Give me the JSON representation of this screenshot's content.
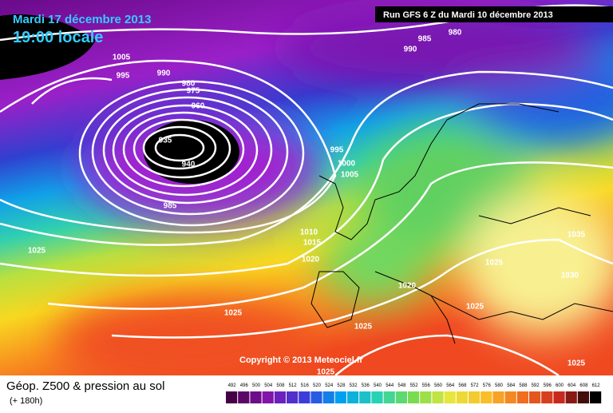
{
  "header": {
    "date": "Mardi 17 décembre 2013",
    "time": "19:00 locale",
    "run": "Run GFS 6 Z du Mardi 10 décembre 2013"
  },
  "copyright": "Copyright © 2013 Meteociel.fr",
  "footer": {
    "title": "Géop. Z500 & pression au sol",
    "step": "(+ 180h)"
  },
  "legend": {
    "labels": [
      492,
      496,
      500,
      504,
      508,
      512,
      516,
      520,
      524,
      528,
      532,
      536,
      540,
      544,
      548,
      552,
      556,
      560,
      564,
      568,
      572,
      576,
      580,
      584,
      588,
      592,
      596,
      600,
      604,
      608,
      612
    ]
  },
  "isobars": [
    "1005",
    "995",
    "990",
    "980",
    "975",
    "960",
    "935",
    "940",
    "985",
    "1025",
    "1025",
    "1010",
    "1015",
    "1020",
    "995",
    "1000",
    "1005",
    "1020",
    "1025",
    "1025",
    "1025",
    "1025",
    "1035",
    "1030",
    "1025",
    "985",
    "990",
    "980"
  ]
}
